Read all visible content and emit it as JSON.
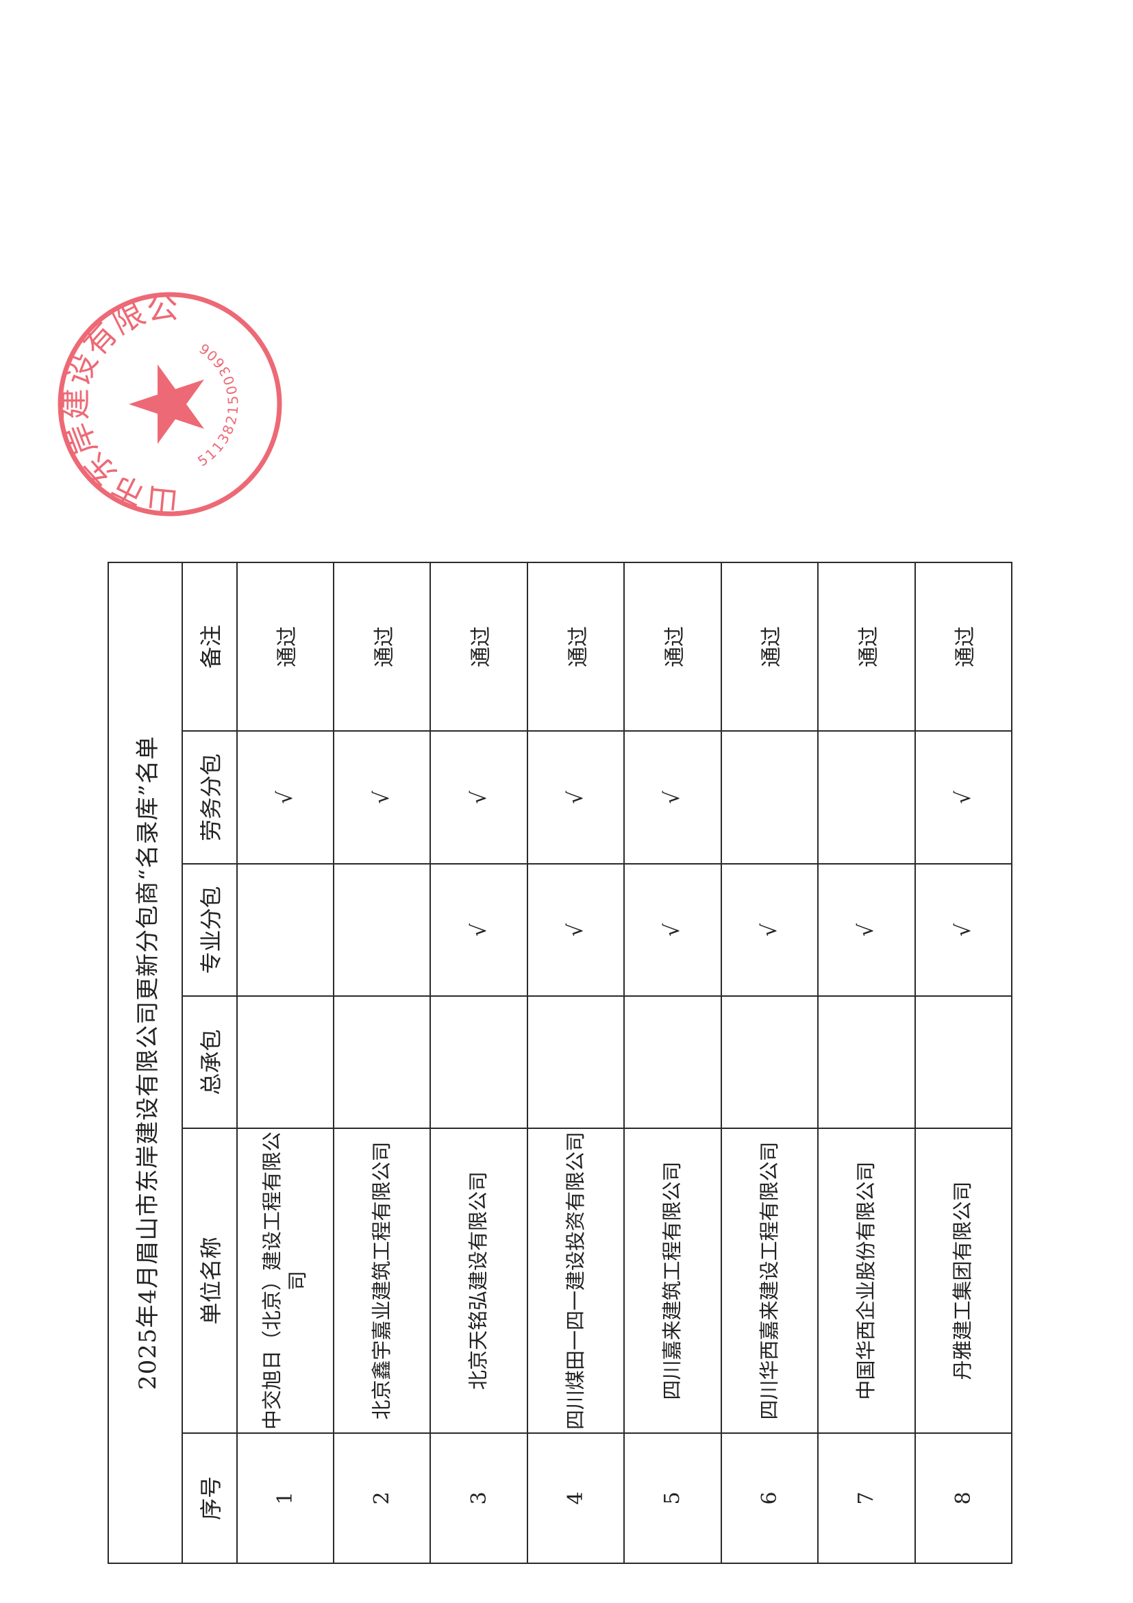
{
  "title": "2025年4月眉山市东岸建设有限公司更新分包商“名录库”名单",
  "columns": [
    "序号",
    "单位名称",
    "总承包",
    "专业分包",
    "劳务分包",
    "备注"
  ],
  "check_mark": "√",
  "rows": [
    {
      "no": "1",
      "name": "中交旭日（北京）建设工程有限公司",
      "general": "",
      "specialty": "",
      "labor": "√",
      "remark": "通过"
    },
    {
      "no": "2",
      "name": "北京鑫宇嘉业建筑工程有限公司",
      "general": "",
      "specialty": "",
      "labor": "√",
      "remark": "通过"
    },
    {
      "no": "3",
      "name": "北京天铭弘建设有限公司",
      "general": "",
      "specialty": "√",
      "labor": "√",
      "remark": "通过"
    },
    {
      "no": "4",
      "name": "四川煤田一四一建设投资有限公司",
      "general": "",
      "specialty": "√",
      "labor": "√",
      "remark": "通过"
    },
    {
      "no": "5",
      "name": "四川嘉来建筑工程有限公司",
      "general": "",
      "specialty": "√",
      "labor": "√",
      "remark": "通过"
    },
    {
      "no": "6",
      "name": "四川华西嘉来建设工程有限公司",
      "general": "",
      "specialty": "√",
      "labor": "",
      "remark": "通过"
    },
    {
      "no": "7",
      "name": "中国华西企业股份有限公司",
      "general": "",
      "specialty": "√",
      "labor": "",
      "remark": "通过"
    },
    {
      "no": "8",
      "name": "丹雅建工集团有限公司",
      "general": "",
      "specialty": "√",
      "labor": "√",
      "remark": "通过"
    }
  ],
  "stamp": {
    "text": "眉山市东岸建设有限公司",
    "number": "51138215003606",
    "color": "#e8404f"
  }
}
